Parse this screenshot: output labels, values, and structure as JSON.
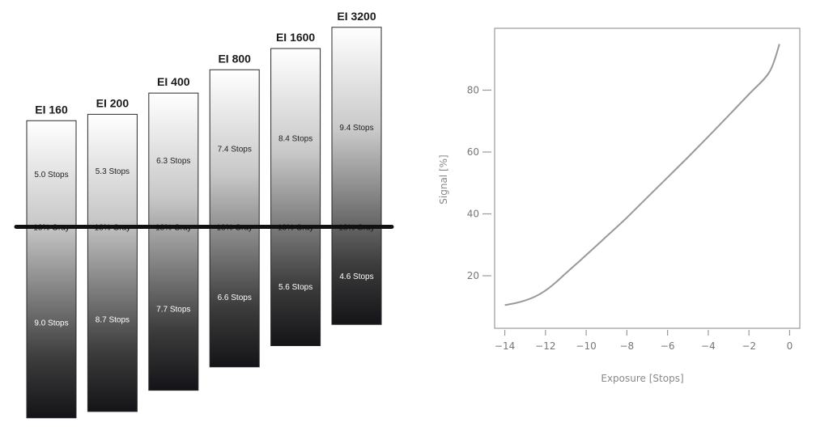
{
  "chart_data": [
    {
      "type": "bar",
      "description_role": "exposure latitude per exposure index",
      "midline_label": "18% Gray",
      "bars": [
        {
          "title": "EI 160",
          "above": "5.0 Stops",
          "below": "9.0 Stops",
          "stops_above": 5.0,
          "stops_below": 9.0
        },
        {
          "title": "EI 200",
          "above": "5.3 Stops",
          "below": "8.7 Stops",
          "stops_above": 5.3,
          "stops_below": 8.7
        },
        {
          "title": "EI 400",
          "above": "6.3 Stops",
          "below": "7.7 Stops",
          "stops_above": 6.3,
          "stops_below": 7.7
        },
        {
          "title": "EI 800",
          "above": "7.4 Stops",
          "below": "6.6 Stops",
          "stops_above": 7.4,
          "stops_below": 6.6
        },
        {
          "title": "EI 1600",
          "above": "8.4 Stops",
          "below": "5.6 Stops",
          "stops_above": 8.4,
          "stops_below": 5.6
        },
        {
          "title": "EI 3200",
          "above": "9.4 Stops",
          "below": "4.6 Stops",
          "stops_above": 9.4,
          "stops_below": 4.6
        }
      ]
    },
    {
      "type": "line",
      "xlabel": "Exposure [Stops]",
      "ylabel": "Signal [%]",
      "xlim": [
        -14.5,
        0.5
      ],
      "ylim": [
        3,
        100
      ],
      "xticks": [
        -14,
        -12,
        -10,
        -8,
        -6,
        -4,
        -2,
        0
      ],
      "yticks": [
        20,
        40,
        60,
        80
      ],
      "series": [
        {
          "color": "#999999",
          "x": [
            -14,
            -13.5,
            -13,
            -12.5,
            -12,
            -11.5,
            -11,
            -10.5,
            -10,
            -9,
            -8,
            -7,
            -6,
            -5,
            -4,
            -3,
            -2,
            -1,
            -0.5
          ],
          "y": [
            10.5,
            11.1,
            12,
            13.3,
            15.2,
            17.8,
            20.8,
            23.7,
            26.7,
            32.7,
            38.8,
            45.3,
            51.8,
            58.3,
            65,
            71.8,
            78.7,
            85.8,
            94.9
          ]
        }
      ]
    }
  ]
}
